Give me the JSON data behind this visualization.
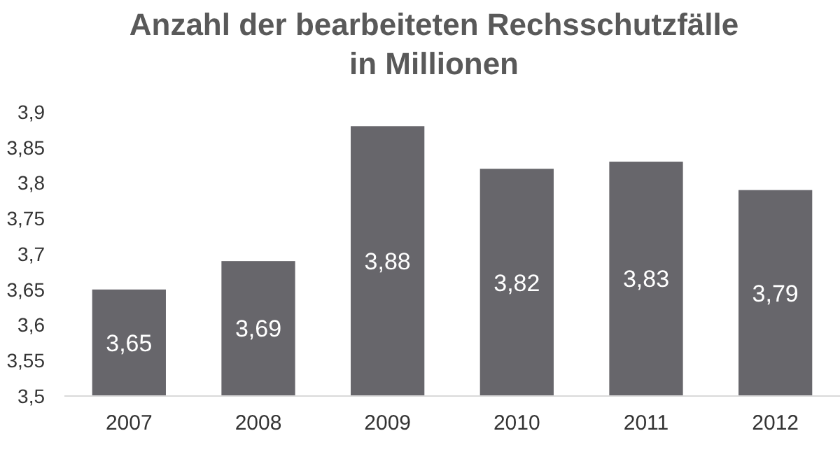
{
  "chart_data": {
    "type": "bar",
    "title": "Anzahl der bearbeiteten Rechsschutzfälle\nin Millionen",
    "categories": [
      "2007",
      "2008",
      "2009",
      "2010",
      "2011",
      "2012"
    ],
    "values": [
      3.65,
      3.69,
      3.88,
      3.82,
      3.83,
      3.79
    ],
    "value_labels": [
      "3,65",
      "3,69",
      "3,88",
      "3,82",
      "3,83",
      "3,79"
    ],
    "color": "#67666b",
    "ylim": [
      3.5,
      3.9
    ],
    "yticks": [
      {
        "value": 3.5,
        "label": "3,5"
      },
      {
        "value": 3.55,
        "label": "3,55"
      },
      {
        "value": 3.6,
        "label": "3,6"
      },
      {
        "value": 3.65,
        "label": "3,65"
      },
      {
        "value": 3.7,
        "label": "3,7"
      },
      {
        "value": 3.75,
        "label": "3,75"
      },
      {
        "value": 3.8,
        "label": "3,8"
      },
      {
        "value": 3.85,
        "label": "3,85"
      },
      {
        "value": 3.9,
        "label": "3,9"
      }
    ],
    "grid": false
  }
}
